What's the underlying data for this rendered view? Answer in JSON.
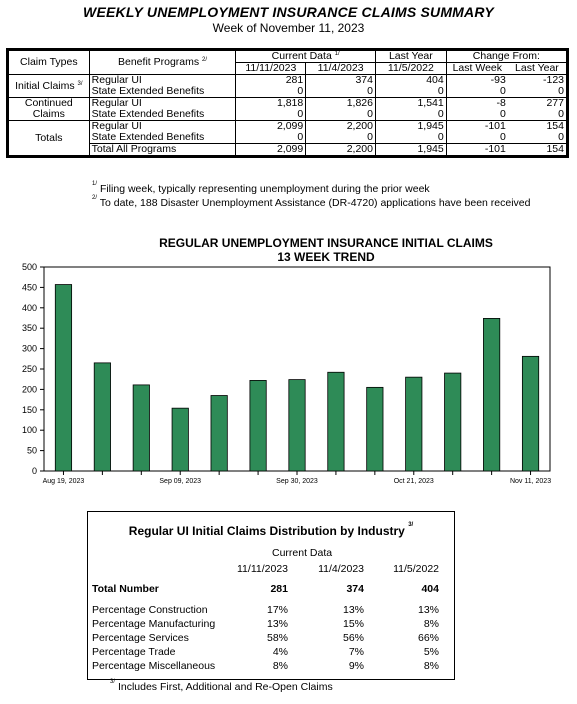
{
  "header": {
    "title": "WEEKLY UNEMPLOYMENT INSURANCE  CLAIMS SUMMARY",
    "subtitle": "Week of November 11, 2023"
  },
  "summary": {
    "col_claim_types": "Claim Types",
    "col_benefit_programs": "Benefit Programs",
    "col_benefit_note": "2/",
    "col_current_data": "Current Data",
    "col_current_note": "1/",
    "col_last_year": "Last Year",
    "col_change_from": "Change From:",
    "date_1": "11/11/2023",
    "date_2": "11/4/2023",
    "date_3": "11/5/2022",
    "change_last_week": "Last Week",
    "change_last_year": "Last Year",
    "groups": [
      {
        "label": "Initial Claims",
        "note": "3/",
        "rows": [
          {
            "program": "Regular UI",
            "d1": "281",
            "d2": "374",
            "ly": "404",
            "clw": "-93",
            "cly": "-123"
          },
          {
            "program": "State Extended Benefits",
            "d1": "0",
            "d2": "0",
            "ly": "0",
            "clw": "0",
            "cly": "0"
          }
        ]
      },
      {
        "label": "Continued",
        "label2": "Claims",
        "rows": [
          {
            "program": "Regular UI",
            "d1": "1,818",
            "d2": "1,826",
            "ly": "1,541",
            "clw": "-8",
            "cly": "277"
          },
          {
            "program": "State Extended Benefits",
            "d1": "0",
            "d2": "0",
            "ly": "0",
            "clw": "0",
            "cly": "0"
          }
        ]
      },
      {
        "label": "Totals",
        "rows": [
          {
            "program": "Regular UI",
            "d1": "2,099",
            "d2": "2,200",
            "ly": "1,945",
            "clw": "-101",
            "cly": "154"
          },
          {
            "program": "State Extended Benefits",
            "d1": "0",
            "d2": "0",
            "ly": "0",
            "clw": "0",
            "cly": "0"
          },
          {
            "program": "Total All Programs",
            "d1": "2,099",
            "d2": "2,200",
            "ly": "1,945",
            "clw": "-101",
            "cly": "154"
          }
        ]
      }
    ]
  },
  "footnotes": {
    "n1_mark": "1/",
    "n1": "Filing week, typically representing unemployment during the prior week",
    "n2_mark": "2/",
    "n2": "To date, 188 Disaster Unemployment Assistance (DR-4720) applications have been received"
  },
  "chart_data": {
    "type": "bar",
    "title": "REGULAR UNEMPLOYMENT INSURANCE INITIAL CLAIMS",
    "subtitle": "13 WEEK TREND",
    "values": [
      457,
      265,
      211,
      154,
      185,
      222,
      224,
      242,
      205,
      230,
      240,
      374,
      281
    ],
    "x_tick_labels": [
      "Aug 19, 2023",
      "Sep 09, 2023",
      "Sep 30, 2023",
      "Oct 21, 2023",
      "Nov 11, 2023"
    ],
    "x_tick_positions": [
      0,
      3,
      6,
      9,
      12
    ],
    "ylim": [
      0,
      500
    ],
    "yticks": [
      0,
      50,
      100,
      150,
      200,
      250,
      300,
      350,
      400,
      450,
      500
    ],
    "bar_color": "#2e8b57",
    "grid": false
  },
  "industry": {
    "title": "Regular UI Initial Claims Distribution by Industry",
    "title_note": "3/",
    "current_data": "Current Data",
    "dates": [
      "11/11/2023",
      "11/4/2023",
      "11/5/2022"
    ],
    "total_label": "Total Number",
    "totals": [
      "281",
      "374",
      "404"
    ],
    "rows": [
      {
        "label": "Percentage Construction",
        "values": [
          "17%",
          "13%",
          "13%"
        ]
      },
      {
        "label": "Percentage Manufacturing",
        "values": [
          "13%",
          "15%",
          "8%"
        ]
      },
      {
        "label": "Percentage Services",
        "values": [
          "58%",
          "56%",
          "66%"
        ]
      },
      {
        "label": "Percentage Trade",
        "values": [
          "4%",
          "7%",
          "5%"
        ]
      },
      {
        "label": "Percentage Miscellaneous",
        "values": [
          "8%",
          "9%",
          "8%"
        ]
      }
    ],
    "footnote_mark": "3/",
    "footnote": "Includes First, Additional and Re-Open Claims"
  }
}
